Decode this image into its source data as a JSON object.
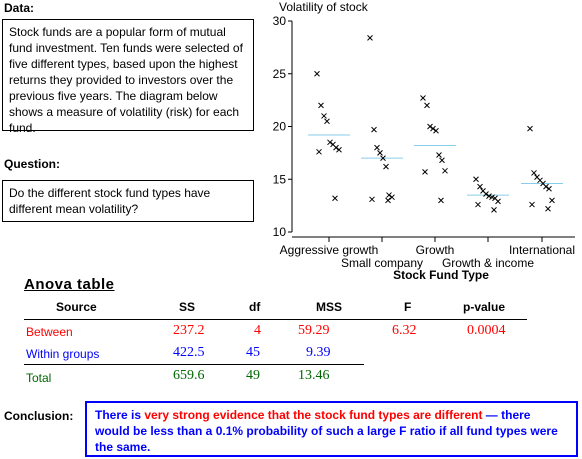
{
  "data_label": "Data:",
  "data_text": "Stock funds are a popular form of mutual fund investment. Ten funds were selected of five different types, based upon the highest returns they provided to investors over the previous five years. The diagram below shows a measure of volatility (risk) for each fund.",
  "question_label": "Question:",
  "question_text": "Do the different stock fund types have different mean volatility?",
  "chart_data": {
    "type": "scatter",
    "ylabel": "Volatility of stock",
    "xlabel": "Stock Fund Type",
    "ylim": [
      10,
      30
    ],
    "yticks": [
      10,
      15,
      20,
      25,
      30
    ],
    "categories": [
      "Aggressive growth",
      "Small company",
      "Growth",
      "Growth & income",
      "International"
    ],
    "series": [
      {
        "category": "Aggressive growth",
        "values": [
          25.0,
          22.0,
          21.0,
          20.5,
          18.5,
          18.3,
          18.0,
          17.8,
          17.6,
          13.2
        ],
        "mean": 19.2
      },
      {
        "category": "Small company",
        "values": [
          28.4,
          19.7,
          18.0,
          17.5,
          17.0,
          16.2,
          13.5,
          13.3,
          13.1,
          13.0
        ],
        "mean": 17.0
      },
      {
        "category": "Growth",
        "values": [
          22.7,
          22.0,
          20.0,
          19.8,
          19.6,
          17.3,
          16.8,
          15.8,
          15.7,
          13.0
        ],
        "mean": 18.2
      },
      {
        "category": "Growth & income",
        "values": [
          15.0,
          14.3,
          13.9,
          13.6,
          13.4,
          13.3,
          13.2,
          12.9,
          12.6,
          12.1
        ],
        "mean": 13.5
      },
      {
        "category": "International",
        "values": [
          19.8,
          15.6,
          15.2,
          14.9,
          14.6,
          14.3,
          14.1,
          13.0,
          12.6,
          12.2
        ],
        "mean": 14.6
      }
    ],
    "mean_color": "#87ceeb"
  },
  "anova": {
    "title": "Anova table",
    "headers": {
      "source": "Source",
      "ss": "SS",
      "df": "df",
      "mss": "MSS",
      "f": "F",
      "p": "p-value"
    },
    "between": {
      "label": "Between",
      "ss": "237.2",
      "df": "4",
      "mss": "59.29",
      "f": "6.32",
      "p": "0.0004"
    },
    "within": {
      "label": "Within groups",
      "ss": "422.5",
      "df": "45",
      "mss": "9.39"
    },
    "total": {
      "label": "Total",
      "ss": "659.6",
      "df": "49",
      "mss": "13.46"
    }
  },
  "conclusion_label": "Conclusion:",
  "conclusion": {
    "part1": "There is ",
    "part2": "very strong evidence that the stock fund types are different",
    "part3": " — there would be less than a 0.1% probability of such a large F ratio if all fund types were the same."
  },
  "colors": {
    "between": "#ff0000",
    "within": "#0000ff",
    "total": "#006600",
    "conclusion": "#0000ff"
  }
}
